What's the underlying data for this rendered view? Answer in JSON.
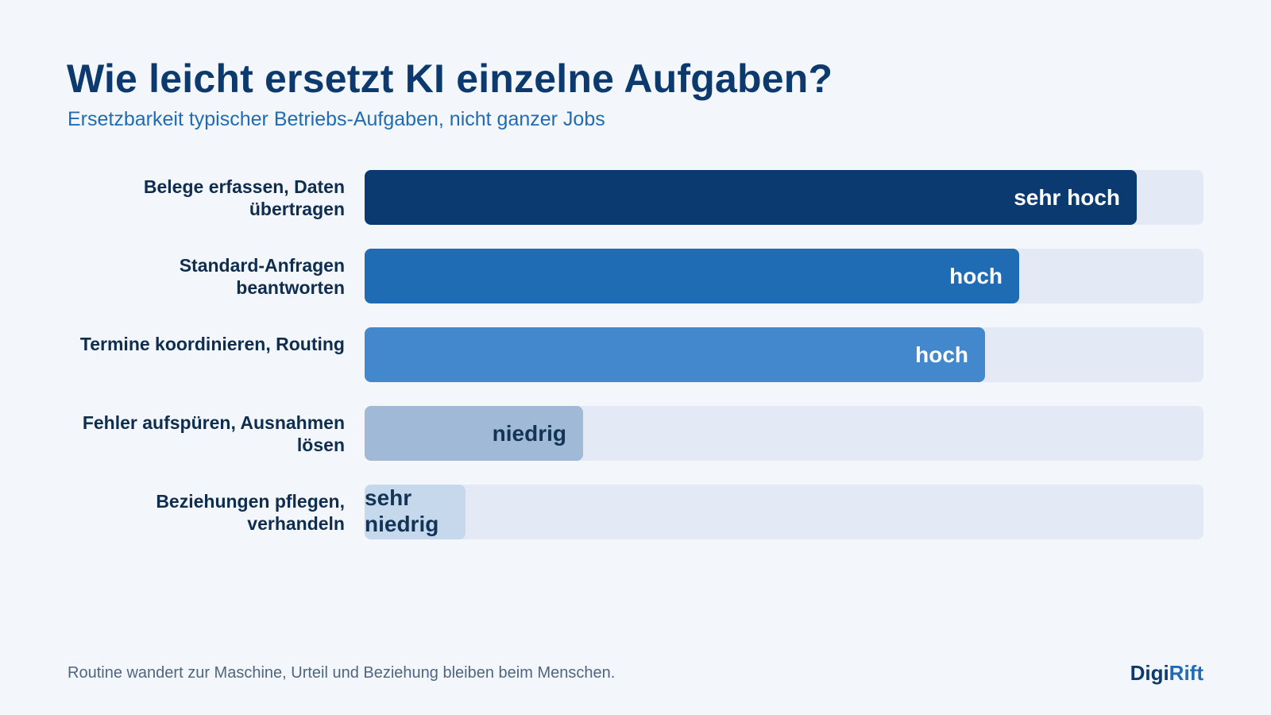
{
  "header": {
    "title": "Wie leicht ersetzt KI einzelne Aufgaben?",
    "subtitle": "Ersetzbarkeit typischer Betriebs-Aufgaben, nicht ganzer Jobs"
  },
  "chart_data": {
    "type": "bar",
    "orientation": "horizontal",
    "title": "Wie leicht ersetzt KI einzelne Aufgaben?",
    "subtitle": "Ersetzbarkeit typischer Betriebs-Aufgaben, nicht ganzer Jobs",
    "categories": [
      "Belege erfassen, Daten übertragen",
      "Standard-Anfragen beantworten",
      "Termine koordinieren, Routing",
      "Fehler aufspüren, Ausnahmen lösen",
      "Beziehungen pflegen, verhandeln"
    ],
    "values": [
      0.92,
      0.78,
      0.74,
      0.26,
      0.12
    ],
    "value_labels": [
      "sehr hoch",
      "hoch",
      "hoch",
      "niedrig",
      "sehr niedrig"
    ],
    "xlim": [
      0,
      1
    ],
    "grid": false,
    "legend": "none",
    "bar_colors": [
      "#0a3a70",
      "#1f6cb5",
      "#4387cc",
      "#a0b9d6",
      "#c6d8ec"
    ],
    "label_colors": [
      "#ffffff",
      "#ffffff",
      "#ffffff",
      "#133456",
      "#133456"
    ],
    "track_color": "#e3eaf5"
  },
  "footer": {
    "note": "Routine wandert zur Maschine, Urteil und Beziehung bleiben beim Menschen.",
    "brand_part1": "Digi",
    "brand_part2": "Rift"
  }
}
